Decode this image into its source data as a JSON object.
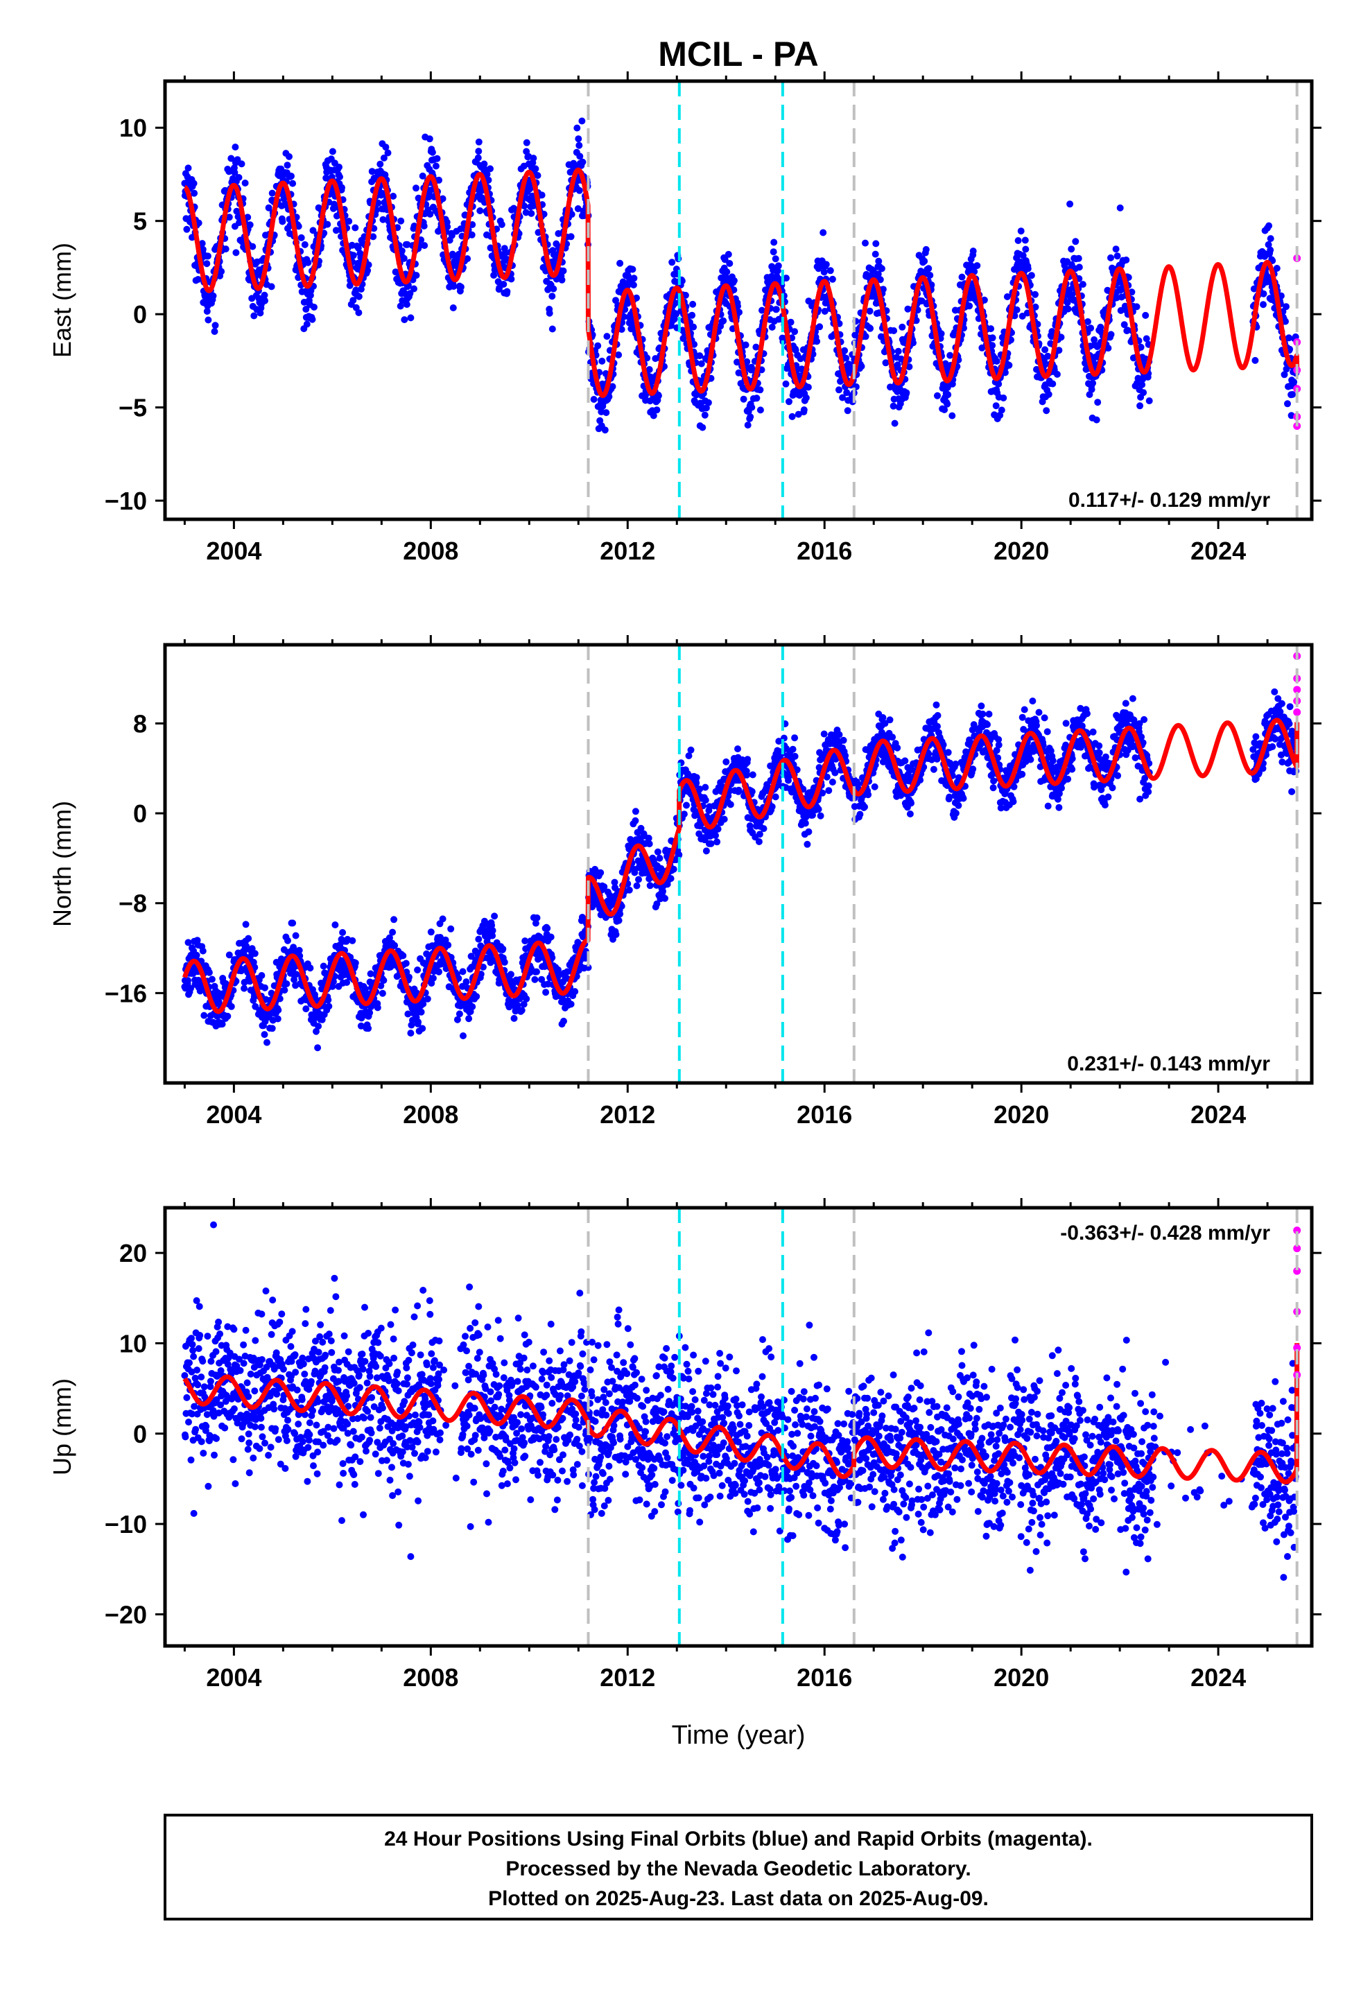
{
  "title": "MCIL - PA",
  "x_axis_label": "Time (year)",
  "footer": {
    "line1": "24 Hour Positions Using Final Orbits (blue) and Rapid Orbits (magenta).",
    "line2": "Processed by the Nevada Geodetic Laboratory.",
    "line3": "Plotted on 2025-Aug-23. Last data on 2025-Aug-09."
  },
  "colors": {
    "final_orbits": "#0000ff",
    "rapid_orbits": "#ff00ff",
    "model": "#ff0000",
    "equipment_change": "#c0c0c0",
    "earthquake": "#00e5ee"
  },
  "chart_data": [
    {
      "type": "scatter",
      "component": "east",
      "ylabel": "East (mm)",
      "xlim": [
        2002.6,
        2025.9
      ],
      "ylim": [
        -11.0,
        12.5
      ],
      "xticks": [
        2004,
        2008,
        2012,
        2016,
        2020,
        2024
      ],
      "xtick_labels": [
        "2004",
        "2008",
        "2012",
        "2016",
        "2020",
        "2024"
      ],
      "yticks": [
        10,
        5,
        0,
        -5,
        -10
      ],
      "ytick_labels": [
        "10",
        "5",
        "0",
        "−5",
        "−10"
      ],
      "rate_label": "0.117+/- 0.129 mm/yr",
      "rate_label_position": "bottom-right",
      "gray_dashed_lines_x": [
        2011.2,
        2016.6,
        2025.6
      ],
      "cyan_dashed_lines_x": [
        2013.05,
        2015.15
      ],
      "model": {
        "segments": [
          {
            "from": 2003.0,
            "to": 2011.2,
            "offset": 4.0,
            "rate": 0.117,
            "t0": 2003.0
          },
          {
            "from": 2011.2,
            "to": 2016.6,
            "offset": -1.6,
            "rate": 0.117,
            "t0": 2011.2
          },
          {
            "from": 2016.6,
            "to": 2025.6,
            "offset": -1.0,
            "rate": 0.117,
            "t0": 2016.6
          }
        ],
        "annual_amplitude": 2.8,
        "annual_phase": 1.6,
        "end_jump": -0.8
      },
      "noise_sigma": 1.0,
      "rapid_points": [
        {
          "x": 2025.6,
          "y": 3.0
        },
        {
          "x": 2025.6,
          "y": -1.5
        },
        {
          "x": 2025.6,
          "y": -3.0
        },
        {
          "x": 2025.6,
          "y": -4.0
        },
        {
          "x": 2025.6,
          "y": -5.5
        },
        {
          "x": 2025.6,
          "y": -6.0
        }
      ]
    },
    {
      "type": "scatter",
      "component": "north",
      "ylabel": "North (mm)",
      "xlim": [
        2002.6,
        2025.9
      ],
      "ylim": [
        -24.0,
        15.0
      ],
      "xticks": [
        2004,
        2008,
        2012,
        2016,
        2020,
        2024
      ],
      "xtick_labels": [
        "2004",
        "2008",
        "2012",
        "2016",
        "2020",
        "2024"
      ],
      "yticks": [
        8,
        0,
        -8,
        -16
      ],
      "ytick_labels": [
        "8",
        "0",
        "−8",
        "−16"
      ],
      "rate_label": "0.231+/- 0.143 mm/yr",
      "rate_label_position": "bottom-right",
      "gray_dashed_lines_x": [
        2011.2,
        2016.6,
        2025.6
      ],
      "cyan_dashed_lines_x": [
        2013.05,
        2015.15
      ],
      "model": {
        "segments": [
          {
            "from": 2003.0,
            "to": 2011.2,
            "offset": -15.5,
            "rate": 0.231,
            "t0": 2003.0
          },
          {
            "from": 2011.2,
            "to": 2013.05,
            "offset": -8.0,
            "rate": 2.8,
            "t0": 2011.2
          },
          {
            "from": 2013.05,
            "to": 2016.6,
            "offset": 0.5,
            "rate": 0.9,
            "t0": 2013.05
          },
          {
            "from": 2016.6,
            "to": 2025.6,
            "offset": 4.0,
            "rate": 0.231,
            "t0": 2016.6
          }
        ],
        "annual_amplitude": 2.3,
        "annual_phase": 0.4,
        "end_jump": 4.0
      },
      "noise_sigma": 1.2,
      "rapid_points": [
        {
          "x": 2025.6,
          "y": 14.0
        },
        {
          "x": 2025.6,
          "y": 12.0
        },
        {
          "x": 2025.6,
          "y": 11.0
        },
        {
          "x": 2025.6,
          "y": 10.0
        },
        {
          "x": 2025.6,
          "y": 9.0
        }
      ]
    },
    {
      "type": "scatter",
      "component": "up",
      "ylabel": "Up (mm)",
      "xlim": [
        2002.6,
        2025.9
      ],
      "ylim": [
        -23.5,
        25.0
      ],
      "xticks": [
        2004,
        2008,
        2012,
        2016,
        2020,
        2024
      ],
      "xtick_labels": [
        "2004",
        "2008",
        "2012",
        "2016",
        "2020",
        "2024"
      ],
      "yticks": [
        20,
        10,
        0,
        -10,
        -20
      ],
      "ytick_labels": [
        "20",
        "10",
        "0",
        "−10",
        "−20"
      ],
      "rate_label": "-0.363+/- 0.428 mm/yr",
      "rate_label_position": "top-right",
      "gray_dashed_lines_x": [
        2011.2,
        2016.6,
        2025.6
      ],
      "cyan_dashed_lines_x": [
        2013.05,
        2015.15
      ],
      "model": {
        "segments": [
          {
            "from": 2003.0,
            "to": 2011.2,
            "offset": 5.0,
            "rate": -0.363,
            "t0": 2003.0
          },
          {
            "from": 2011.2,
            "to": 2016.6,
            "offset": 1.5,
            "rate": -0.9,
            "t0": 2011.2
          },
          {
            "from": 2016.6,
            "to": 2025.6,
            "offset": -2.0,
            "rate": -0.2,
            "t0": 2016.6
          }
        ],
        "annual_amplitude": 1.6,
        "annual_phase": 2.4,
        "end_jump": 14.0
      },
      "noise_sigma": 4.2,
      "rapid_points": [
        {
          "x": 2025.6,
          "y": 22.5
        },
        {
          "x": 2025.6,
          "y": 20.5
        },
        {
          "x": 2025.6,
          "y": 18.0
        },
        {
          "x": 2025.6,
          "y": 13.5
        },
        {
          "x": 2025.6,
          "y": 9.5
        },
        {
          "x": 2025.6,
          "y": 6.5
        }
      ]
    }
  ]
}
